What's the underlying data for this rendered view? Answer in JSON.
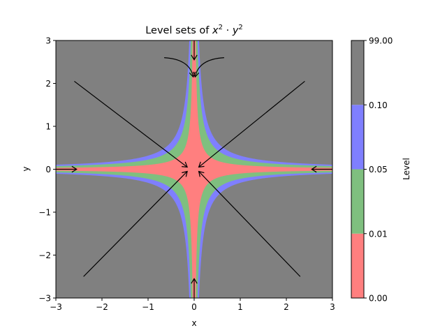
{
  "chart_data": {
    "type": "contour",
    "title": {
      "prefix": "Level sets of ",
      "var1": "x",
      "exp1": "2",
      "op": " · ",
      "var2": "y",
      "exp2": "2"
    },
    "xlabel": "x",
    "ylabel": "y",
    "xlim": [
      -3,
      3
    ],
    "ylim": [
      -3,
      3
    ],
    "x_ticks": [
      -3,
      -2,
      -1,
      0,
      1,
      2,
      3
    ],
    "y_ticks": [
      -3,
      -2,
      -1,
      0,
      1,
      2,
      3
    ],
    "x_tick_labels": [
      "−3",
      "−2",
      "−1",
      "0",
      "1",
      "2",
      "3"
    ],
    "y_tick_labels": [
      "−3",
      "−2",
      "−1",
      "0",
      "1",
      "2",
      "3"
    ],
    "function": "x^2 * y^2",
    "levels": [
      0.0,
      0.01,
      0.05,
      0.1,
      99.0
    ],
    "level_colors": [
      "#ff7f7f",
      "#7fbf7f",
      "#7f7fff",
      "#808080"
    ],
    "colorbar": {
      "label": "Level",
      "tick_labels": [
        "0.00",
        "0.01",
        "0.05",
        "0.10",
        "99.00"
      ]
    },
    "arrows": [
      {
        "from": [
          -2.6,
          2.05
        ],
        "to": [
          -0.15,
          0.05
        ],
        "shape": "straight"
      },
      {
        "from": [
          2.4,
          2.05
        ],
        "to": [
          0.1,
          0.05
        ],
        "shape": "straight"
      },
      {
        "from": [
          -2.4,
          -2.5
        ],
        "to": [
          -0.15,
          -0.05
        ],
        "shape": "straight"
      },
      {
        "from": [
          2.3,
          -2.5
        ],
        "to": [
          0.1,
          -0.05
        ],
        "shape": "straight"
      },
      {
        "from": [
          -0.65,
          2.6
        ],
        "to": [
          -0.02,
          2.15
        ],
        "shape": "curved"
      },
      {
        "from": [
          0.65,
          2.6
        ],
        "to": [
          0.02,
          2.15
        ],
        "shape": "curved"
      },
      {
        "from": [
          0.0,
          3.0
        ],
        "to": [
          0.0,
          2.55
        ],
        "shape": "straight"
      },
      {
        "from": [
          0.0,
          -3.0
        ],
        "to": [
          0.0,
          -2.55
        ],
        "shape": "straight"
      },
      {
        "from": [
          -3.0,
          0.0
        ],
        "to": [
          -2.55,
          0.0
        ],
        "shape": "straight"
      },
      {
        "from": [
          3.0,
          0.0
        ],
        "to": [
          2.55,
          0.0
        ],
        "shape": "straight"
      }
    ]
  }
}
